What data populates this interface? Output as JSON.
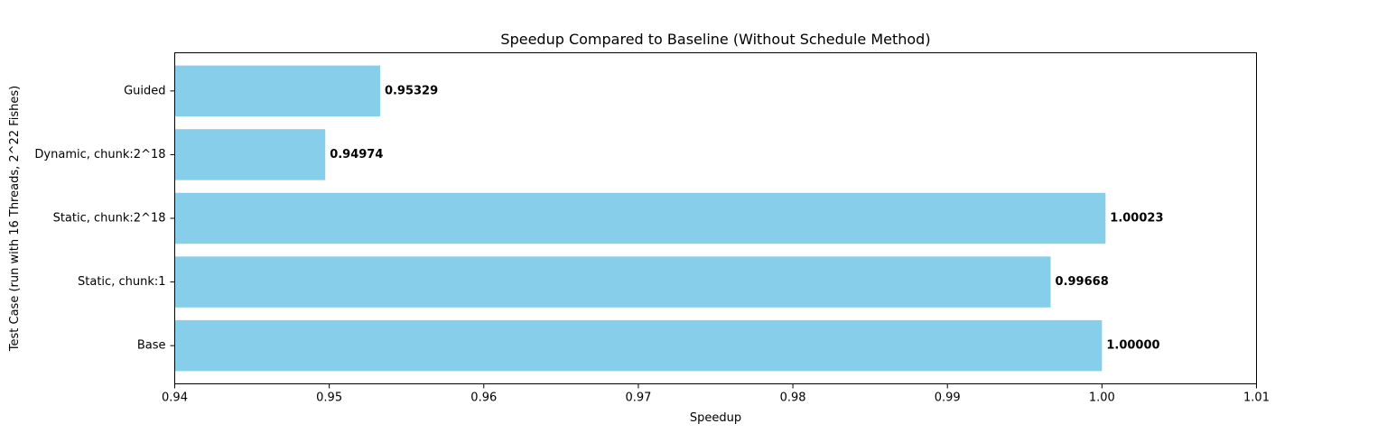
{
  "chart_data": {
    "type": "bar",
    "orientation": "horizontal",
    "title": "Speedup Compared to Baseline (Without Schedule Method)",
    "xlabel": "Speedup",
    "ylabel": "Test Case (run with 16 Threads, 2^22 Fishes)",
    "categories": [
      "Base",
      "Static, chunk:1",
      "Static, chunk:2^18",
      "Dynamic, chunk:2^18",
      "Guided"
    ],
    "values": [
      1.0,
      0.99668,
      1.00023,
      0.94974,
      0.95329
    ],
    "value_labels": [
      "1.00000",
      "0.99668",
      "1.00023",
      "0.94974",
      "0.95329"
    ],
    "xlim": [
      0.94,
      1.01
    ],
    "xticks": [
      0.94,
      0.95,
      0.96,
      0.97,
      0.98,
      0.99,
      1.0,
      1.01
    ],
    "xtick_labels": [
      "0.94",
      "0.95",
      "0.96",
      "0.97",
      "0.98",
      "0.99",
      "1.00",
      "1.01"
    ],
    "bar_color": "#87CEEB",
    "grid": false,
    "legend": "none"
  }
}
